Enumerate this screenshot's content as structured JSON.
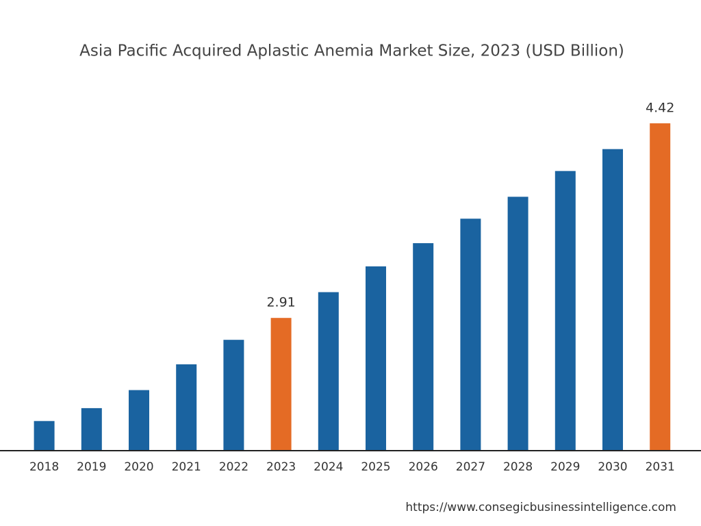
{
  "chart_data": {
    "type": "bar",
    "title": "Asia Pacific Acquired Aplastic Anemia Market Size, 2023 (USD Billion)",
    "categories": [
      "2018",
      "2019",
      "2020",
      "2021",
      "2022",
      "2023",
      "2024",
      "2025",
      "2026",
      "2027",
      "2028",
      "2029",
      "2030",
      "2031"
    ],
    "values": [
      2.11,
      2.21,
      2.35,
      2.55,
      2.74,
      2.91,
      3.11,
      3.31,
      3.49,
      3.68,
      3.85,
      4.05,
      4.22,
      4.42
    ],
    "colors": [
      "#1a63a0",
      "#1a63a0",
      "#1a63a0",
      "#1a63a0",
      "#1a63a0",
      "#e46b25",
      "#1a63a0",
      "#1a63a0",
      "#1a63a0",
      "#1a63a0",
      "#1a63a0",
      "#1a63a0",
      "#1a63a0",
      "#e46b25"
    ],
    "highlight_color": "#e46b25",
    "ylim": [
      1.88,
      4.5
    ],
    "source": "https://www.consegicbusinessintelligence.com"
  }
}
